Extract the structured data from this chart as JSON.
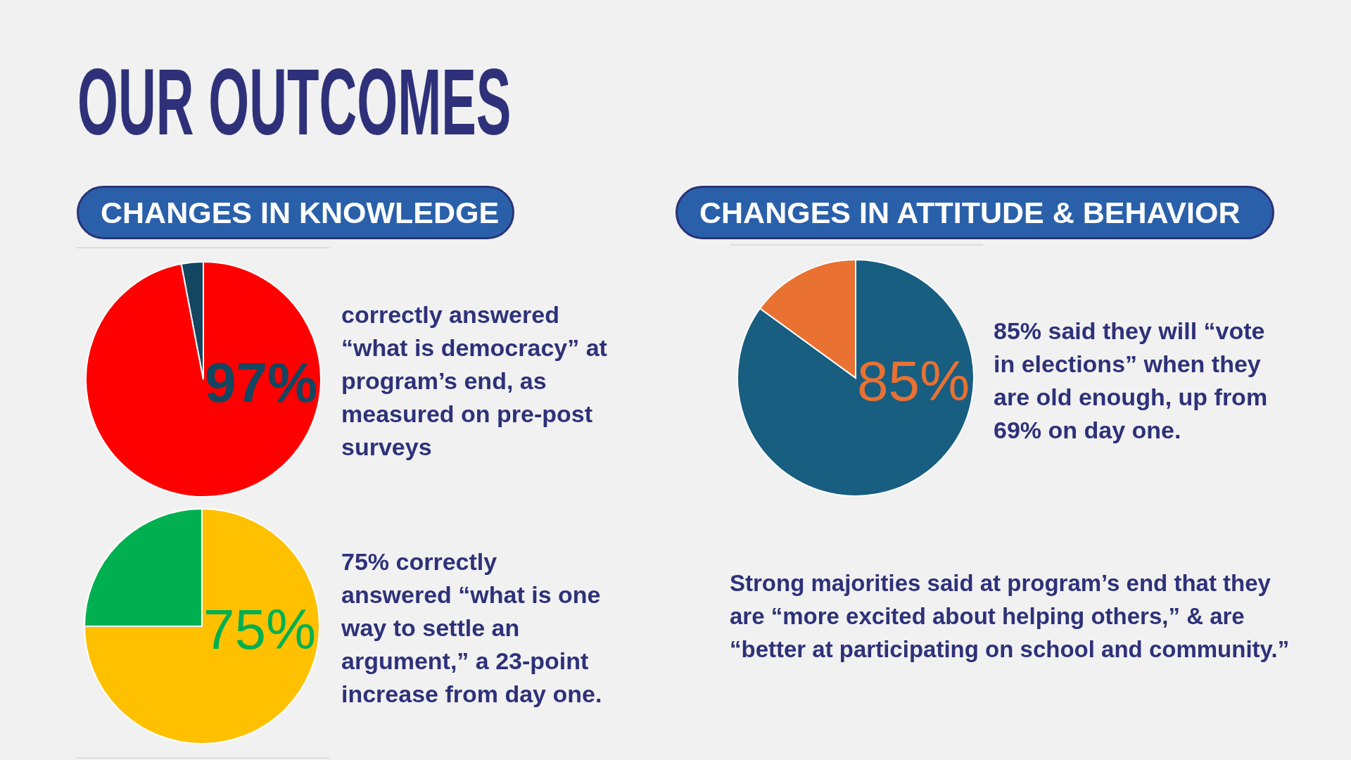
{
  "chart_data": [
    {
      "type": "pie",
      "title": "OUR OUTCOMES",
      "subtitle": "CHANGES IN KNOWLEDGE",
      "categories": [
        null,
        null
      ],
      "values": [
        97,
        3
      ],
      "colors": [
        "#ff0000",
        "#134660"
      ],
      "value_labels": [
        "97%",
        null
      ],
      "annotations": [
        "correctly answered “what is democracy” at program’s end, as measured on pre-post surveys"
      ]
    },
    {
      "type": "pie",
      "categories": [
        null,
        null
      ],
      "values": [
        75,
        25
      ],
      "colors": [
        "#ffc000",
        "#00b050"
      ],
      "value_labels": [
        "75%",
        null
      ],
      "annotations": [
        "75% correctly answered “what is one way to settle an argument,” a 23-point increase from day one."
      ]
    },
    {
      "type": "pie",
      "subtitle": "CHANGES IN ATTITUDE & BEHAVIOR",
      "categories": [
        null,
        null
      ],
      "values": [
        85,
        15
      ],
      "colors": [
        "#175e81",
        "#e97132"
      ],
      "value_labels": [
        "85%",
        null
      ],
      "annotations": [
        "85% said they will “vote in elections” when they are old enough, up from 69% on day one."
      ]
    },
    {
      "type": "other",
      "annotations": [
        "Strong majorities said at program’s end that they are “more excited about helping others,” & are “better at participating on school and community.”"
      ]
    }
  ]
}
